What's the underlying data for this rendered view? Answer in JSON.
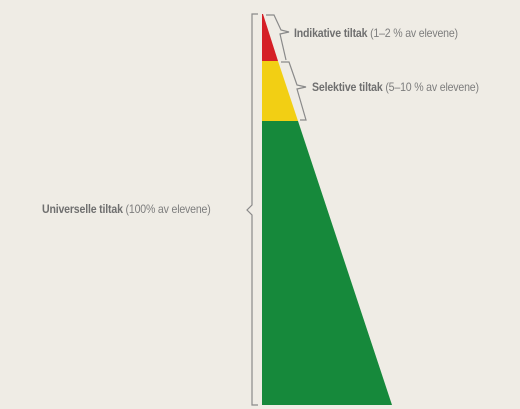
{
  "diagram": {
    "labels": {
      "indicative": {
        "bold": "Indikative tiltak",
        "rest": "(1–2 % av elevene)"
      },
      "selective": {
        "bold": "Selektive tiltak",
        "rest": "(5–10 % av elevene)"
      },
      "universal": {
        "bold": "Universelle tiltak",
        "rest": "(100% av elevene)"
      }
    },
    "tiers": [
      {
        "name": "Indikative tiltak",
        "share": "1–2 %",
        "color": "#d51f26"
      },
      {
        "name": "Selektive tiltak",
        "share": "5–10 %",
        "color": "#f2cf14"
      },
      {
        "name": "Universelle tiltak",
        "share": "100%",
        "color": "#16893b"
      }
    ],
    "bracket_color": "#8a8a8a"
  }
}
